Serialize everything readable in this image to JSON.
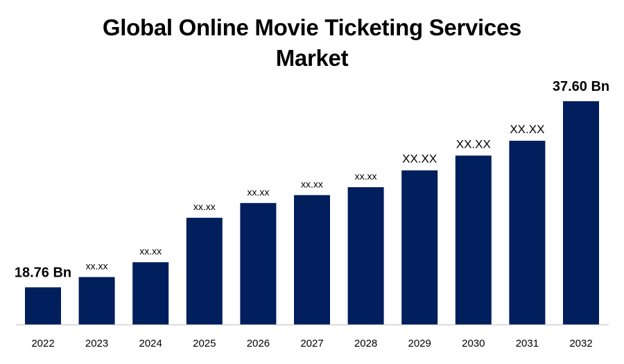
{
  "chart_data": {
    "type": "bar",
    "title_lines": [
      "Global Online Movie Ticketing Services",
      "Market"
    ],
    "categories": [
      "2022",
      "2023",
      "2024",
      "2025",
      "2026",
      "2027",
      "2028",
      "2029",
      "2030",
      "2031",
      "2032"
    ],
    "values": [
      18.76,
      19.8,
      21.3,
      25.8,
      27.3,
      28.1,
      28.9,
      30.6,
      32.1,
      33.6,
      37.6
    ],
    "data_labels": [
      "18.76 Bn",
      "xx.xx",
      "xx.xx",
      "xx.xx",
      "xx.xx",
      "xx.xx",
      "xx.xx",
      "XX.XX",
      "XX.XX",
      "XX.XX",
      "37.60 Bn"
    ],
    "xlabel": "",
    "ylabel": "",
    "ylim": [
      15.0,
      37.6
    ],
    "grid": false,
    "legend": "none",
    "bar_color": "#001f5c"
  }
}
